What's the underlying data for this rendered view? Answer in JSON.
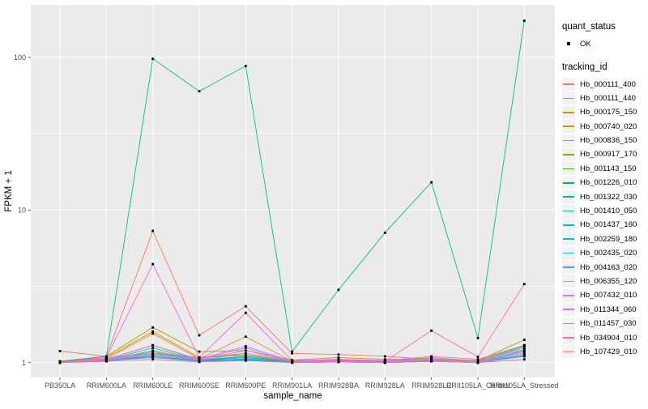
{
  "colors": {
    "page_bg": "#FFFFFF",
    "panel_bg": "#EBEBEB",
    "grid": "#FFFFFF",
    "tick_mark": "#333333",
    "tick_label": "#4D4D4D",
    "axis_title": "#000000",
    "legend_key_bg": "#F2F2F2",
    "point": "#000000"
  },
  "legend": {
    "quant_status": {
      "title": "quant_status",
      "items": [
        {
          "label": "OK",
          "color": "#000000",
          "shape": "square-point"
        }
      ]
    },
    "tracking_id": {
      "title": "tracking_id"
    }
  },
  "chart_data": {
    "type": "line",
    "title": "",
    "xlabel": "sample_name",
    "ylabel": "FPKM + 1",
    "x_type": "categorical",
    "y_scale": "log10",
    "y_ticks": [
      1,
      10,
      100
    ],
    "ylim": [
      0.8,
      221
    ],
    "grid": true,
    "legend_position": "right",
    "point_shape": "square",
    "point_color": "#000000",
    "point_status_label": "OK",
    "categories": [
      "PB350LA",
      "RRIM600LA",
      "RRIM600LE",
      "RRIM600SE",
      "RRIM600PE",
      "RRIM901LA",
      "RRIM928BA",
      "RRIM928LA",
      "RRIM928LE",
      "RRII105LA_Control",
      "RRII105LA_Stressed"
    ],
    "series": [
      {
        "name": "Hb_000111_400",
        "color": "#F8766D",
        "values": [
          1.19,
          1.1,
          7.3,
          1.51,
          2.34,
          1.15,
          1.13,
          1.1,
          1.05,
          1.03,
          1.3
        ]
      },
      {
        "name": "Hb_000111_440",
        "color": "#EA8331",
        "values": [
          1.02,
          1.06,
          1.55,
          1.06,
          1.48,
          1.02,
          1.05,
          1.03,
          1.02,
          1.01,
          1.25
        ]
      },
      {
        "name": "Hb_000175_150",
        "color": "#D89000",
        "values": [
          1.01,
          1.08,
          1.6,
          1.08,
          1.15,
          1.02,
          1.04,
          1.02,
          1.04,
          1.01,
          1.18
        ]
      },
      {
        "name": "Hb_000740_020",
        "color": "#C09B00",
        "values": [
          1.0,
          1.04,
          1.2,
          1.04,
          1.1,
          1.01,
          1.02,
          1.01,
          1.03,
          1.0,
          1.1
        ]
      },
      {
        "name": "Hb_000836_150",
        "color": "#A3A500",
        "values": [
          1.01,
          1.1,
          1.7,
          1.18,
          1.2,
          1.04,
          1.08,
          1.05,
          1.06,
          1.03,
          1.41
        ]
      },
      {
        "name": "Hb_000917_170",
        "color": "#7CAE00",
        "values": [
          1.0,
          1.06,
          1.15,
          1.08,
          1.12,
          1.02,
          1.05,
          1.02,
          1.08,
          1.02,
          1.3
        ]
      },
      {
        "name": "Hb_001143_150",
        "color": "#39B600",
        "values": [
          1.0,
          1.04,
          1.12,
          1.04,
          1.08,
          1.01,
          1.03,
          1.02,
          1.04,
          1.0,
          1.15
        ]
      },
      {
        "name": "Hb_001226_010",
        "color": "#00BB4E",
        "values": [
          1.0,
          1.04,
          1.1,
          1.03,
          1.05,
          1.0,
          1.02,
          1.01,
          1.03,
          1.0,
          1.12
        ]
      },
      {
        "name": "Hb_001322_030",
        "color": "#00C087",
        "values": [
          1.02,
          1.1,
          98,
          60,
          88,
          1.18,
          3.0,
          7.1,
          15.2,
          1.45,
          174
        ]
      },
      {
        "name": "Hb_001410_050",
        "color": "#00C1A3",
        "values": [
          1.0,
          1.03,
          1.08,
          1.02,
          1.04,
          1.0,
          1.01,
          1.0,
          1.02,
          1.0,
          1.1
        ]
      },
      {
        "name": "Hb_001437_160",
        "color": "#00BFC4",
        "values": [
          1.0,
          1.05,
          1.3,
          1.04,
          1.1,
          1.01,
          1.02,
          1.01,
          1.04,
          1.0,
          1.28
        ]
      },
      {
        "name": "Hb_002259_180",
        "color": "#00BAE0",
        "values": [
          1.0,
          1.04,
          1.25,
          1.03,
          1.08,
          1.0,
          1.02,
          1.0,
          1.03,
          1.0,
          1.22
        ]
      },
      {
        "name": "Hb_002435_020",
        "color": "#00B0F6",
        "values": [
          1.0,
          1.03,
          1.18,
          1.02,
          1.06,
          1.0,
          1.01,
          1.0,
          1.02,
          1.0,
          1.18
        ]
      },
      {
        "name": "Hb_004163_020",
        "color": "#35A2FF",
        "values": [
          1.0,
          1.02,
          1.1,
          1.02,
          1.04,
          1.0,
          1.01,
          1.0,
          1.02,
          1.0,
          1.12
        ]
      },
      {
        "name": "Hb_006355_120",
        "color": "#9590FF",
        "values": [
          1.0,
          1.05,
          1.12,
          1.05,
          1.25,
          1.01,
          1.03,
          1.01,
          1.04,
          1.0,
          1.18
        ]
      },
      {
        "name": "Hb_007432_010",
        "color": "#C77CFF",
        "values": [
          1.0,
          1.06,
          1.14,
          1.06,
          1.28,
          1.02,
          1.04,
          1.02,
          1.06,
          1.01,
          1.2
        ]
      },
      {
        "name": "Hb_011344_060",
        "color": "#E76BF3",
        "values": [
          1.0,
          1.04,
          1.12,
          1.04,
          1.15,
          1.01,
          1.02,
          1.01,
          1.04,
          1.0,
          1.15
        ]
      },
      {
        "name": "Hb_011457_030",
        "color": "#FA62DB",
        "values": [
          1.0,
          1.08,
          4.42,
          1.08,
          2.12,
          1.03,
          1.05,
          1.03,
          1.1,
          1.05,
          1.3
        ]
      },
      {
        "name": "Hb_034904_010",
        "color": "#FF62BC",
        "values": [
          1.0,
          1.05,
          1.3,
          1.05,
          1.2,
          1.02,
          1.04,
          1.02,
          1.62,
          1.09,
          3.27
        ]
      },
      {
        "name": "Hb_107429_010",
        "color": "#FF6A98",
        "values": [
          1.0,
          1.02,
          1.05,
          1.01,
          1.03,
          1.0,
          1.01,
          1.0,
          1.02,
          1.0,
          1.05
        ]
      }
    ]
  }
}
